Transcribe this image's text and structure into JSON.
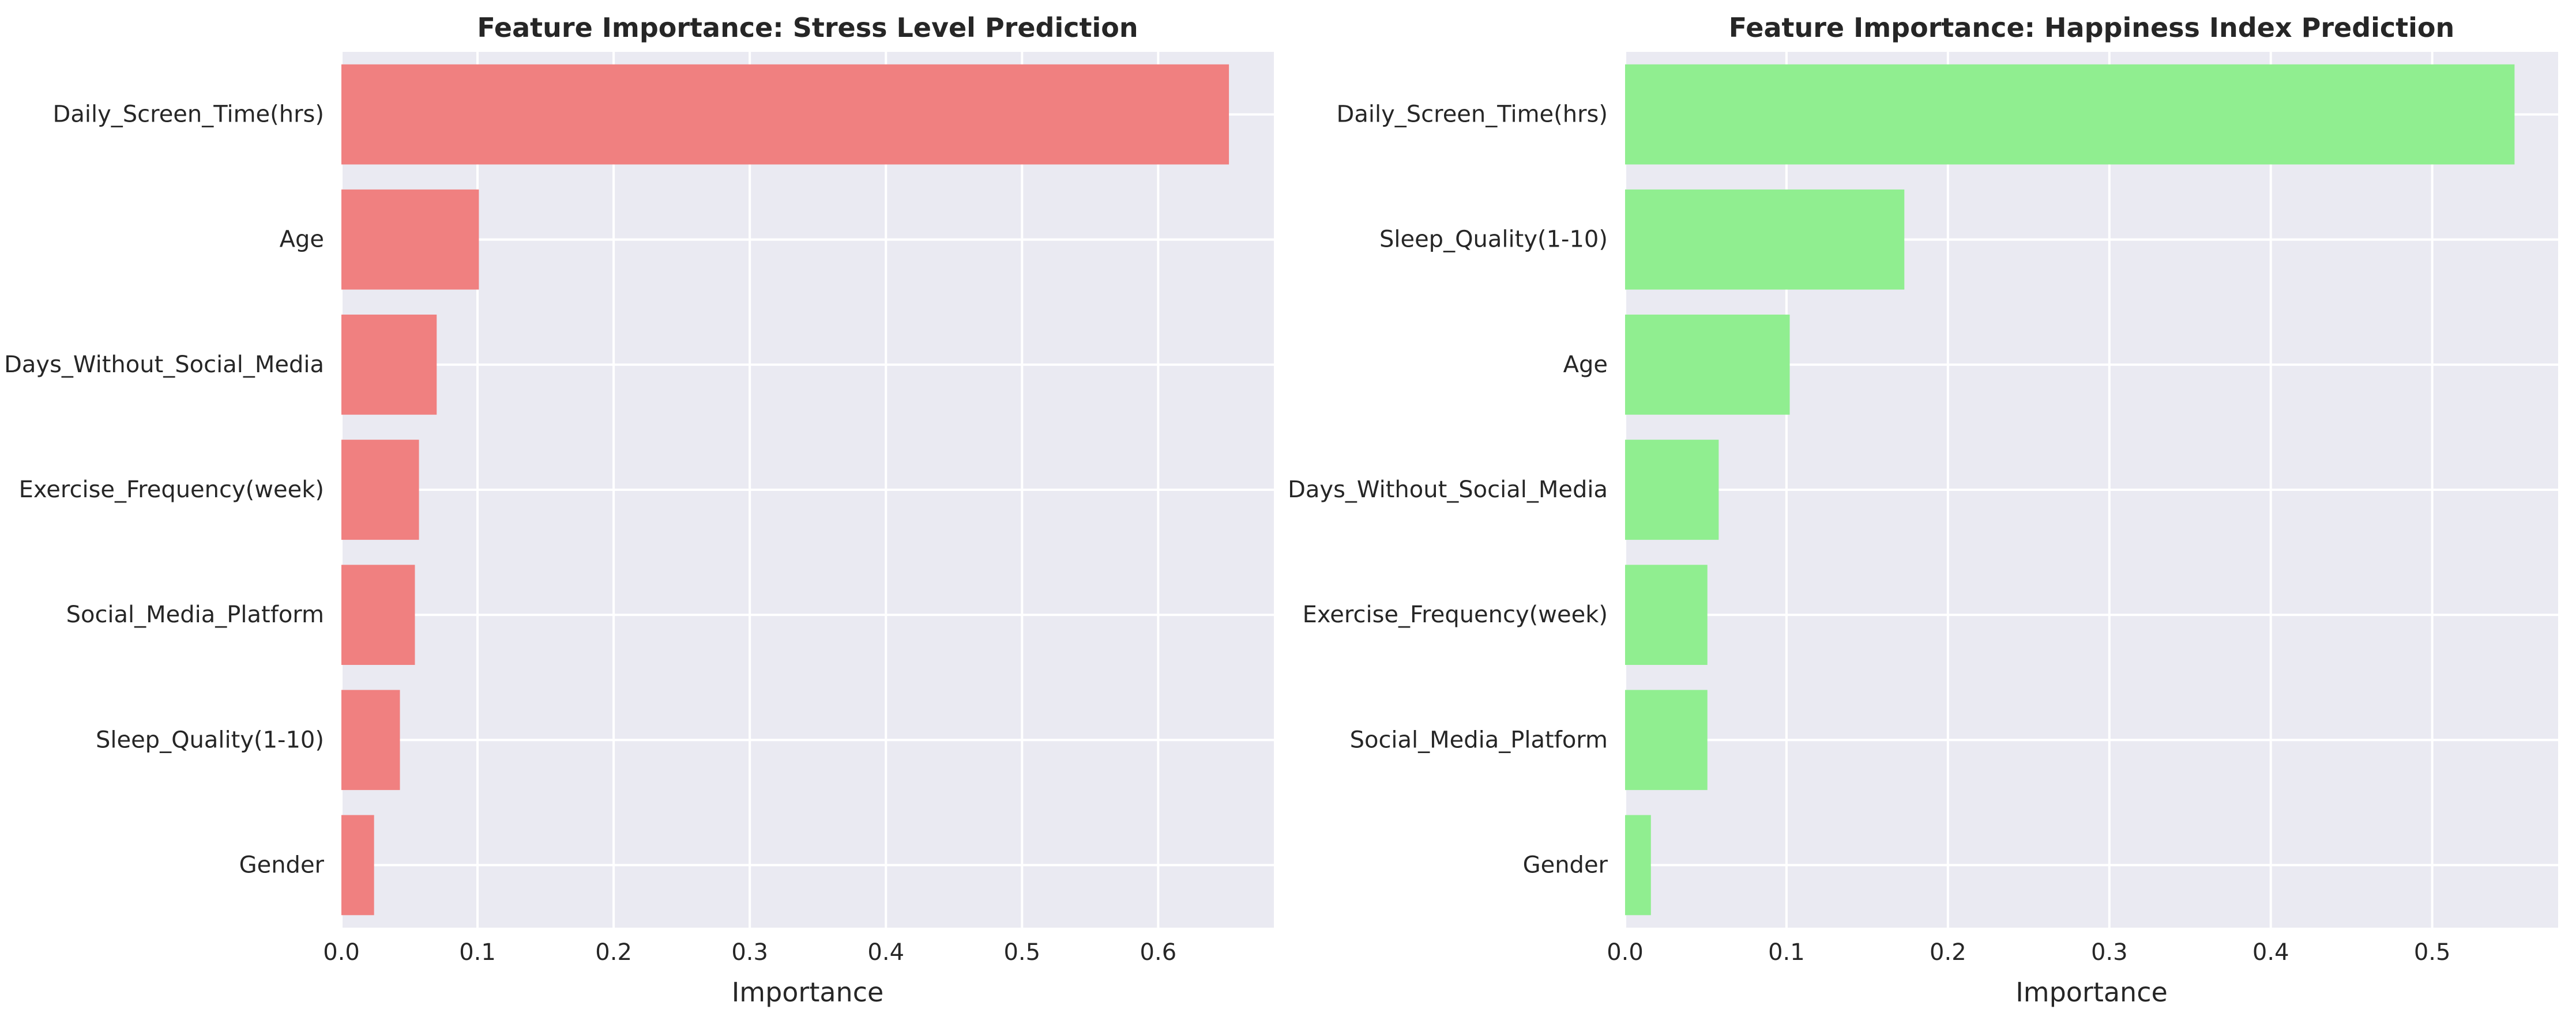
{
  "colors": {
    "panel_bg": "#eaeaf2",
    "grid": "#ffffff",
    "stress_bar": "#f08080",
    "happiness_bar": "#90ee90",
    "text": "#262626"
  },
  "chart_data": [
    {
      "type": "bar",
      "orientation": "horizontal",
      "title": "Feature Importance: Stress Level Prediction",
      "xlabel": "Importance",
      "ylabel": "",
      "xlim": [
        0,
        0.685
      ],
      "xticks": [
        0.0,
        0.1,
        0.2,
        0.3,
        0.4,
        0.5,
        0.6
      ],
      "xtick_labels": [
        "0.0",
        "0.1",
        "0.2",
        "0.3",
        "0.4",
        "0.5",
        "0.6"
      ],
      "grid": true,
      "color": "#f08080",
      "categories": [
        "Daily_Screen_Time(hrs)",
        "Age",
        "Days_Without_Social_Media",
        "Exercise_Frequency(week)",
        "Social_Media_Platform",
        "Sleep_Quality(1-10)",
        "Gender"
      ],
      "values": [
        0.652,
        0.101,
        0.07,
        0.057,
        0.054,
        0.043,
        0.024
      ]
    },
    {
      "type": "bar",
      "orientation": "horizontal",
      "title": "Feature Importance: Happiness Index Prediction",
      "xlabel": "Importance",
      "ylabel": "",
      "xlim": [
        0,
        0.578
      ],
      "xticks": [
        0.0,
        0.1,
        0.2,
        0.3,
        0.4,
        0.5
      ],
      "xtick_labels": [
        "0.0",
        "0.1",
        "0.2",
        "0.3",
        "0.4",
        "0.5"
      ],
      "grid": true,
      "color": "#90ee90",
      "categories": [
        "Daily_Screen_Time(hrs)",
        "Sleep_Quality(1-10)",
        "Age",
        "Days_Without_Social_Media",
        "Exercise_Frequency(week)",
        "Social_Media_Platform",
        "Gender"
      ],
      "values": [
        0.551,
        0.173,
        0.102,
        0.058,
        0.051,
        0.051,
        0.016
      ]
    }
  ]
}
